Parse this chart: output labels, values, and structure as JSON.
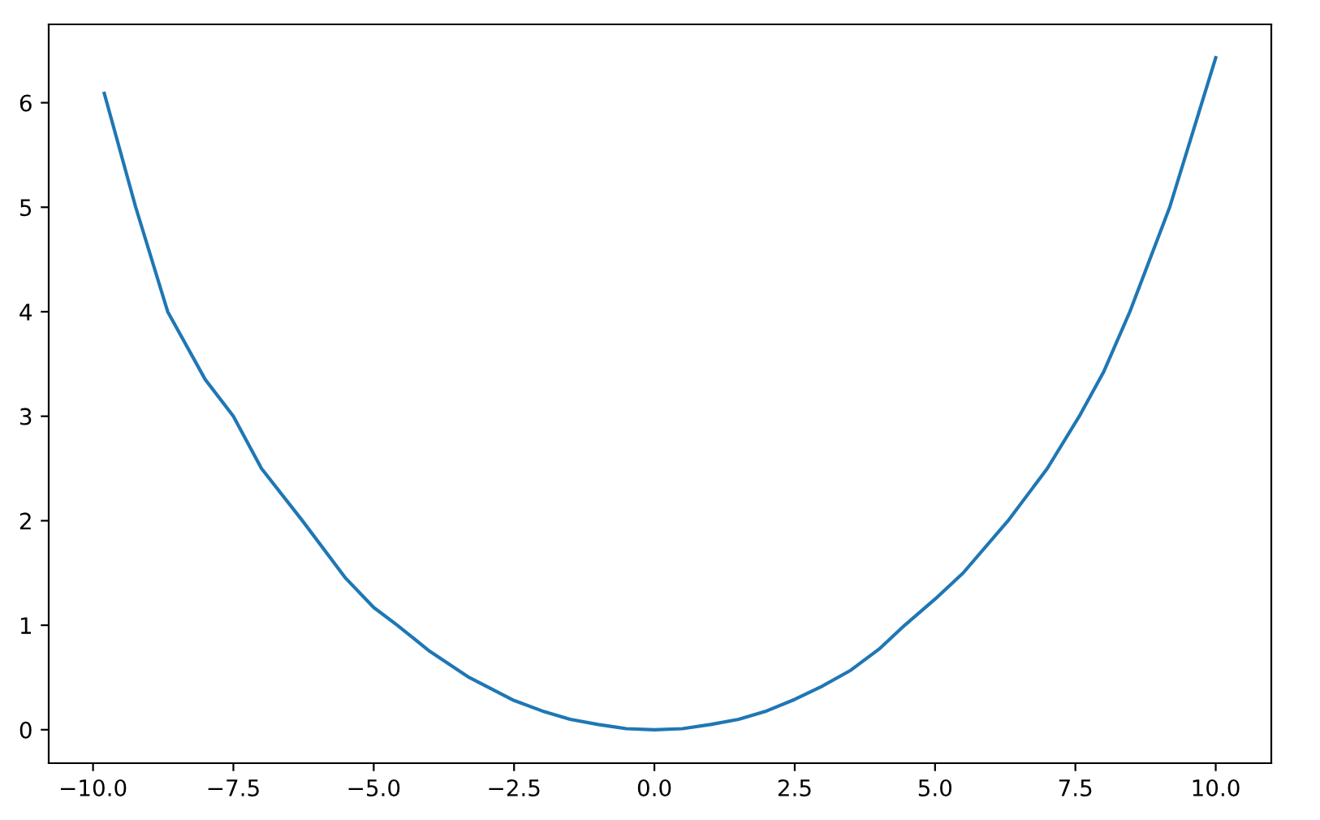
{
  "chart_data": {
    "type": "line",
    "xlim": [
      -10.79,
      10.99
    ],
    "ylim": [
      -0.32,
      6.75
    ],
    "xticks": [
      {
        "value": -10,
        "label": "−10.0"
      },
      {
        "value": -7.5,
        "label": "−7.5"
      },
      {
        "value": -5,
        "label": "−5.0"
      },
      {
        "value": -2.5,
        "label": "−2.5"
      },
      {
        "value": 0,
        "label": "0.0"
      },
      {
        "value": 2.5,
        "label": "2.5"
      },
      {
        "value": 5,
        "label": "5.0"
      },
      {
        "value": 7.5,
        "label": "7.5"
      },
      {
        "value": 10,
        "label": "10.0"
      }
    ],
    "yticks": [
      0,
      1,
      2,
      3,
      4,
      5,
      6
    ],
    "grid": false,
    "marker": "none",
    "line_style": "solid",
    "series": [
      {
        "color": "#1f77b4",
        "x": [
          -9.8,
          -9.24,
          -8.67,
          -8,
          -7.5,
          -7,
          -6.27,
          -5.5,
          -5,
          -4.58,
          -4,
          -3.3,
          -2.5,
          -2,
          -1.5,
          -1,
          -0.5,
          0,
          0.5,
          1,
          1.5,
          2,
          2.5,
          3,
          3.5,
          4,
          4.46,
          5,
          5.5,
          6.3,
          7,
          7.57,
          8,
          8.47,
          9.18,
          10
        ],
        "values": [
          6.09,
          5,
          4,
          3.35,
          3,
          2.5,
          2,
          1.45,
          1.17,
          1,
          0.75,
          0.5,
          0.28,
          0.18,
          0.1,
          0.05,
          0.01,
          0,
          0.01,
          0.05,
          0.1,
          0.18,
          0.29,
          0.42,
          0.57,
          0.77,
          1,
          1.25,
          1.5,
          2,
          2.5,
          3,
          3.42,
          4,
          5,
          6.43
        ]
      }
    ]
  }
}
